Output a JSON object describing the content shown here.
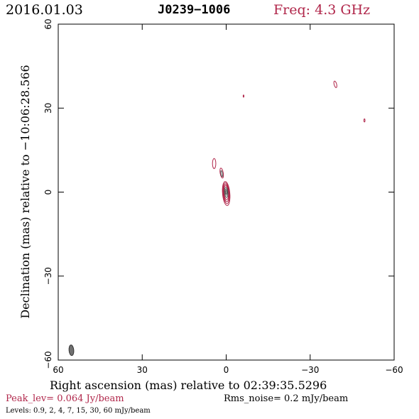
{
  "header": {
    "date": "2016.01.03",
    "source": "J0239−1006",
    "freq": "Freq: 4.3 GHz"
  },
  "footer": {
    "peak": "Peak_lev=  0.064 Jy/beam",
    "rms": "Rms_noise=  0.2 mJy/beam",
    "levels": "Levels: 0.9,    2,    4,    7,   15,   30,   60 mJy/beam"
  },
  "colors": {
    "contour": "#b0264a",
    "inner_contour": "#555555",
    "beam_fill": "#707070"
  },
  "chart_data": {
    "type": "contour",
    "title": "J0239−1006",
    "xlabel": "Right ascension (mas) relative to 02:39:35.5296",
    "ylabel": "Declination (mas) relative to −10:06:28.566",
    "xlim": [
      60,
      -60
    ],
    "ylim": [
      -60,
      60
    ],
    "xticks": [
      60,
      30,
      0,
      -30,
      -60
    ],
    "yticks": [
      60,
      30,
      0,
      -30,
      -60
    ],
    "xtick_labels": [
      "60",
      "30",
      "0",
      "−30",
      "−60"
    ],
    "ytick_labels": [
      "60",
      "30",
      "0",
      "−30",
      "−60"
    ],
    "levels_mJy": [
      0.9,
      2,
      4,
      7,
      15,
      30,
      60
    ],
    "peak_Jy_per_beam": 0.064,
    "rms_mJy_per_beam": 0.2,
    "core": {
      "x": 0,
      "y": 0,
      "rings": [
        {
          "dx": 0,
          "dy": -0.5,
          "rx": 1.3,
          "ry": 4.3,
          "angle": -5
        },
        {
          "dx": 0,
          "dy": -0.4,
          "rx": 1.1,
          "ry": 3.7,
          "angle": -5
        },
        {
          "dx": 0,
          "dy": -0.3,
          "rx": 0.95,
          "ry": 3.1,
          "angle": -5
        },
        {
          "dx": 0,
          "dy": -0.2,
          "rx": 0.8,
          "ry": 2.5,
          "angle": -5
        },
        {
          "dx": 0,
          "dy": -0.1,
          "rx": 0.6,
          "ry": 1.8,
          "angle": -5
        },
        {
          "dx": 0,
          "dy": 0,
          "rx": 0.4,
          "ry": 1.1,
          "angle": -5
        },
        {
          "dx": 0,
          "dy": 0,
          "rx": 0.22,
          "ry": 0.5,
          "angle": -5
        }
      ]
    },
    "jet": [
      {
        "x": 1.6,
        "y": 6.8,
        "rx": 0.55,
        "ry": 1.8,
        "angle": -10
      },
      {
        "x": 1.6,
        "y": 6.6,
        "rx": 0.28,
        "ry": 1.1,
        "angle": -10
      }
    ],
    "features": [
      {
        "x": 4.3,
        "y": 10.2,
        "rx": 0.6,
        "ry": 1.8,
        "angle": 0
      },
      {
        "x": -39,
        "y": 38.5,
        "rx": 0.45,
        "ry": 1.2,
        "angle": -15
      },
      {
        "x": -6.2,
        "y": 34.3,
        "rx": 0.15,
        "ry": 0.4,
        "angle": 0
      },
      {
        "x": -49.4,
        "y": 25.6,
        "rx": 0.2,
        "ry": 0.55,
        "angle": 0
      }
    ],
    "beam": {
      "x": 55.3,
      "y": -56.5,
      "major_mas": 3.8,
      "minor_mas": 1.7,
      "angle": -5
    }
  }
}
